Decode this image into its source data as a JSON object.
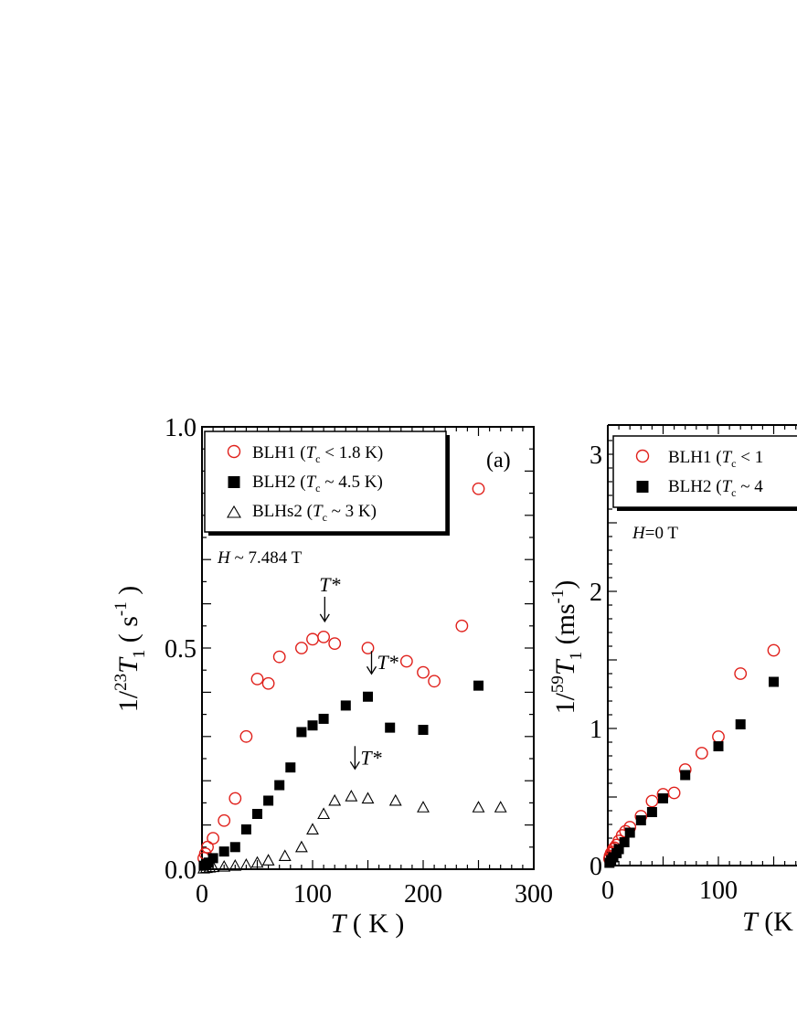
{
  "chart_data": [
    {
      "type": "scatter",
      "panel_label": "(a)",
      "field_label": "H ~ 7.484 T",
      "xlabel": "T ( K )",
      "ylabel": "1/23T1 ( s-1 )",
      "xlim": [
        0,
        300
      ],
      "ylim": [
        0,
        1.0
      ],
      "xticks": [
        "0",
        "100",
        "200",
        "300"
      ],
      "yticks": [
        "0.0",
        "0.5",
        "1.0"
      ],
      "legend": [
        {
          "label": "BLH1 (Tc < 1.8 K)",
          "name": "BLH1",
          "tc": "< 1.8 K"
        },
        {
          "label": "BLH2 (Tc ~ 4.5 K)",
          "name": "BLH2",
          "tc": "~ 4.5 K"
        },
        {
          "label": "BLHs2 (Tc ~ 3 K)",
          "name": "BLHs2",
          "tc": "~ 3 K"
        }
      ],
      "series": [
        {
          "name": "BLH1 (Tc < 1.8 K)",
          "marker": "open-circle",
          "color": "#e0201b",
          "x": [
            1.6,
            3,
            5,
            10,
            20,
            30,
            40,
            50,
            60,
            70,
            90,
            100,
            110,
            120,
            150,
            185,
            200,
            210,
            235,
            250
          ],
          "y": [
            0.025,
            0.035,
            0.05,
            0.07,
            0.11,
            0.16,
            0.3,
            0.43,
            0.42,
            0.48,
            0.5,
            0.52,
            0.525,
            0.51,
            0.5,
            0.47,
            0.445,
            0.425,
            0.55,
            0.86
          ]
        },
        {
          "name": "BLH2 (Tc ~ 4.5 K)",
          "marker": "filled-square",
          "color": "#000000",
          "x": [
            1.6,
            4,
            6,
            10,
            20,
            30,
            40,
            50,
            60,
            70,
            80,
            90,
            100,
            110,
            130,
            150,
            170,
            200,
            250
          ],
          "y": [
            0.008,
            0.012,
            0.015,
            0.025,
            0.04,
            0.05,
            0.09,
            0.125,
            0.155,
            0.19,
            0.23,
            0.31,
            0.325,
            0.34,
            0.37,
            0.39,
            0.32,
            0.315,
            0.415
          ]
        },
        {
          "name": "BLHs2 (Tc ~ 3 K)",
          "marker": "open-triangle",
          "color": "#000000",
          "x": [
            1.6,
            4,
            7,
            10,
            20,
            30,
            40,
            50,
            60,
            75,
            90,
            100,
            110,
            120,
            135,
            150,
            175,
            200,
            250,
            270
          ],
          "y": [
            0.002,
            0.003,
            0.004,
            0.005,
            0.006,
            0.008,
            0.01,
            0.015,
            0.02,
            0.03,
            0.05,
            0.09,
            0.125,
            0.155,
            0.165,
            0.16,
            0.155,
            0.14,
            0.14,
            0.14
          ]
        }
      ],
      "annotations": [
        {
          "text": "T*",
          "arrow": "down",
          "x": 111,
          "y": 0.525
        },
        {
          "text": "T*",
          "arrow": "left",
          "x": 150,
          "y": 0.39
        },
        {
          "text": "T*",
          "arrow": "left",
          "x": 135,
          "y": 0.175
        }
      ]
    },
    {
      "type": "scatter",
      "field_label": "H=0 T",
      "xlabel": "T (K",
      "ylabel": "1/59T1 (ms-1)",
      "xlim": [
        0,
        175
      ],
      "ylim": [
        0,
        3.1
      ],
      "xticks": [
        "0",
        "100"
      ],
      "yticks": [
        "0",
        "1",
        "2",
        "3"
      ],
      "legend": [
        {
          "label": "BLH1 (Tc < 1",
          "name": "BLH1",
          "tc": "< 1"
        },
        {
          "label": "BLH2 (Tc ~ 4",
          "name": "BLH2",
          "tc": "~ 4"
        }
      ],
      "series": [
        {
          "name": "BLH1",
          "marker": "open-circle",
          "color": "#e0201b",
          "x": [
            1.5,
            2,
            3,
            4,
            5,
            6,
            8,
            10,
            13,
            16,
            20,
            30,
            40,
            50,
            60,
            70,
            85,
            100,
            120,
            150
          ],
          "y": [
            0.05,
            0.07,
            0.09,
            0.1,
            0.12,
            0.13,
            0.15,
            0.18,
            0.22,
            0.25,
            0.28,
            0.36,
            0.47,
            0.52,
            0.53,
            0.7,
            0.82,
            0.94,
            1.4,
            1.57
          ]
        },
        {
          "name": "BLH2",
          "marker": "filled-square",
          "color": "#000000",
          "x": [
            1.5,
            3,
            5,
            8,
            10,
            15,
            20,
            30,
            40,
            50,
            70,
            100,
            120,
            150
          ],
          "y": [
            0.02,
            0.04,
            0.06,
            0.09,
            0.12,
            0.17,
            0.24,
            0.33,
            0.39,
            0.49,
            0.66,
            0.87,
            1.03,
            1.34
          ]
        }
      ]
    }
  ]
}
